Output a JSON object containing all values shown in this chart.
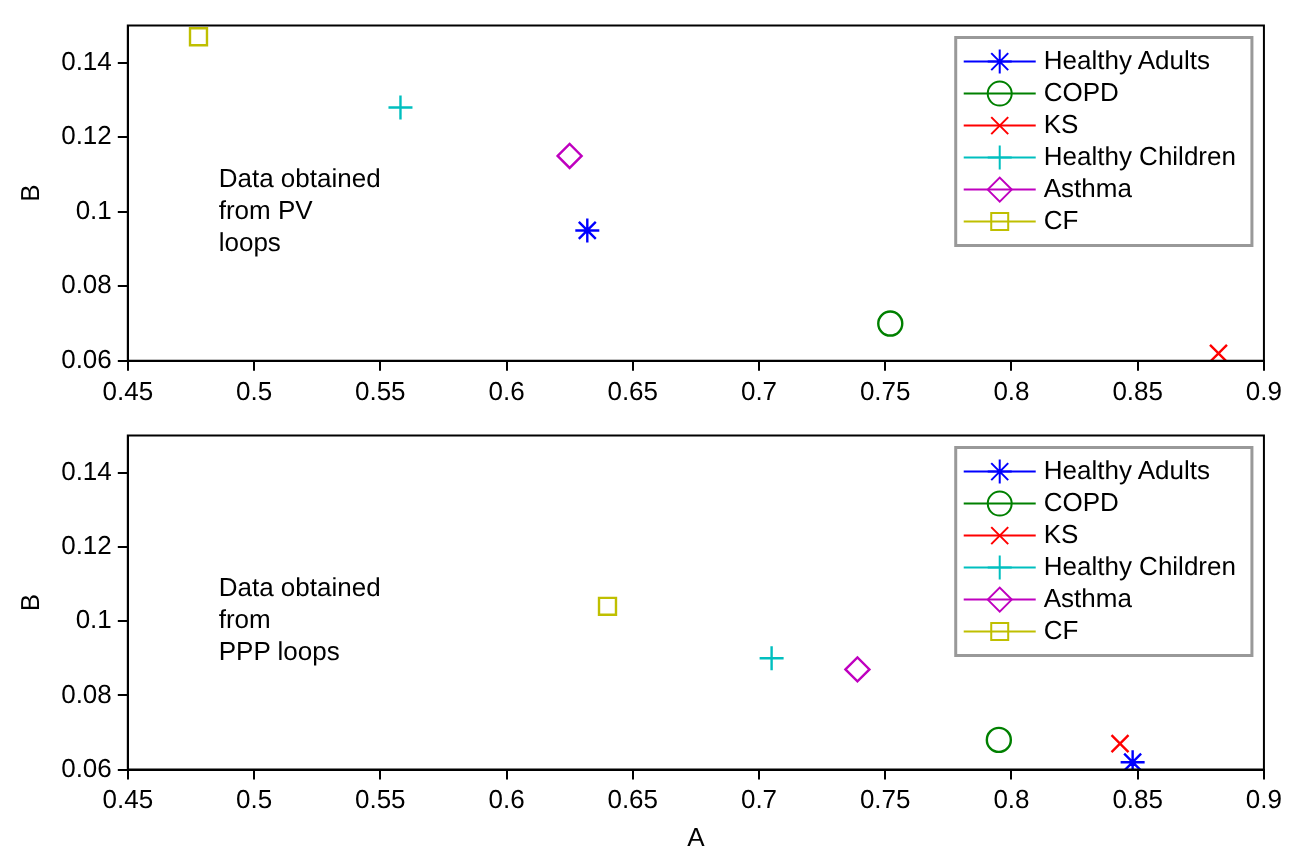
{
  "chart_data": [
    {
      "type": "scatter",
      "ylabel": "B",
      "xlim": [
        0.45,
        0.9
      ],
      "ylim": [
        0.06,
        0.15
      ],
      "xticks": [
        0.45,
        0.5,
        0.55,
        0.6,
        0.65,
        0.7,
        0.75,
        0.8,
        0.85,
        0.9
      ],
      "yticks": [
        0.06,
        0.08,
        0.1,
        0.12,
        0.14
      ],
      "grid": false,
      "legend": "top right",
      "annotations": [
        "Data obtained\nfrom PV\nloops"
      ],
      "series": [
        {
          "name": "Healthy Adults",
          "color": "#0000ff",
          "x": [
            0.632
          ],
          "values": [
            0.095
          ]
        },
        {
          "name": "COPD",
          "color": "#008000",
          "marker": "circle",
          "x": [
            0.752
          ],
          "values": [
            0.07
          ]
        },
        {
          "name": "KS",
          "color": "#ff0000",
          "marker": "x",
          "x": [
            0.882
          ],
          "values": [
            0.062
          ]
        },
        {
          "name": "Healthy Children",
          "color": "#00bfbf",
          "marker": "cross",
          "x": [
            0.558
          ],
          "values": [
            0.128
          ]
        },
        {
          "name": "Asthma",
          "color": "#bf00bf",
          "marker": "diamond",
          "x": [
            0.625
          ],
          "values": [
            0.115
          ]
        },
        {
          "name": "CF",
          "color": "#bfbf00",
          "marker": "square",
          "x": [
            0.478
          ],
          "values": [
            0.147
          ]
        }
      ]
    },
    {
      "type": "scatter",
      "xlabel": "A",
      "ylabel": "B",
      "xlim": [
        0.45,
        0.9
      ],
      "ylim": [
        0.06,
        0.15
      ],
      "xticks": [
        0.45,
        0.5,
        0.55,
        0.6,
        0.65,
        0.7,
        0.75,
        0.8,
        0.85,
        0.9
      ],
      "yticks": [
        0.06,
        0.08,
        0.1,
        0.12,
        0.14
      ],
      "grid": false,
      "legend": "top right",
      "annotations": [
        "Data obtained\nfrom\nPPP loops"
      ],
      "series": [
        {
          "name": "Healthy Adults",
          "color": "#0000ff",
          "x": [
            0.848
          ],
          "values": [
            0.062
          ]
        },
        {
          "name": "COPD",
          "color": "#008000",
          "marker": "circle",
          "x": [
            0.795
          ],
          "values": [
            0.068
          ]
        },
        {
          "name": "KS",
          "color": "#ff0000",
          "marker": "x",
          "x": [
            0.843
          ],
          "values": [
            0.067
          ]
        },
        {
          "name": "Healthy Children",
          "color": "#00bfbf",
          "marker": "cross",
          "x": [
            0.705
          ],
          "values": [
            0.09
          ]
        },
        {
          "name": "Asthma",
          "color": "#bf00bf",
          "marker": "diamond",
          "x": [
            0.739
          ],
          "values": [
            0.087
          ]
        },
        {
          "name": "CF",
          "color": "#bfbf00",
          "marker": "square",
          "x": [
            0.64
          ],
          "values": [
            0.104
          ]
        }
      ]
    }
  ]
}
